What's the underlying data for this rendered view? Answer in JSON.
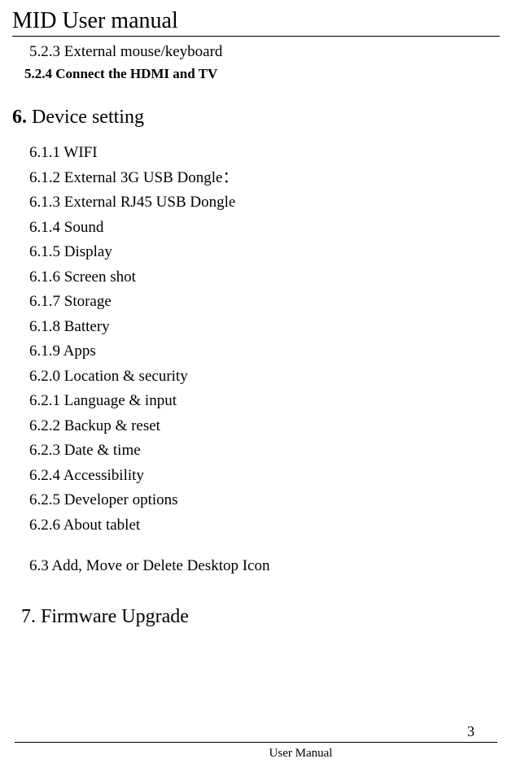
{
  "header": {
    "title": "MID User manual"
  },
  "section5": {
    "items": [
      {
        "num": "5.2.3",
        "text": "External mouse/keyboard"
      },
      {
        "num": "5.2.4",
        "text": "Connect the HDMI and TV"
      }
    ]
  },
  "section6": {
    "heading_num": "6.",
    "heading_text": "Device setting",
    "items": [
      {
        "num": "6.1.1",
        "text": "WIFI"
      },
      {
        "num": "6.1.2",
        "text": "External 3G USB Dongle："
      },
      {
        "num": "6.1.3",
        "text": "External RJ45 USB Dongle"
      },
      {
        "num": "6.1.4",
        "text": "Sound"
      },
      {
        "num": "6.1.5",
        "text": "Display"
      },
      {
        "num": "6.1.6",
        "text": "Screen shot"
      },
      {
        "num": "6.1.7",
        "text": "Storage"
      },
      {
        "num": "6.1.8",
        "text": "Battery"
      },
      {
        "num": "6.1.9",
        "text": "Apps"
      },
      {
        "num": "6.2.0",
        "text": "Location & security"
      },
      {
        "num": "6.2.1",
        "text": "Language & input"
      },
      {
        "num": "6.2.2",
        "text": "Backup & reset"
      },
      {
        "num": "6.2.3",
        "text": "Date & time"
      },
      {
        "num": "6.2.4",
        "text": "Accessibility"
      },
      {
        "num": "6.2.5",
        "text": "Developer options"
      },
      {
        "num": "6.2.6",
        "text": "About tablet"
      }
    ],
    "subsection": {
      "num": "6.3",
      "text": "Add, Move or Delete Desktop Icon"
    }
  },
  "section7": {
    "heading": "7. Firmware Upgrade"
  },
  "footer": {
    "page_number": "3",
    "text": "User Manual"
  }
}
